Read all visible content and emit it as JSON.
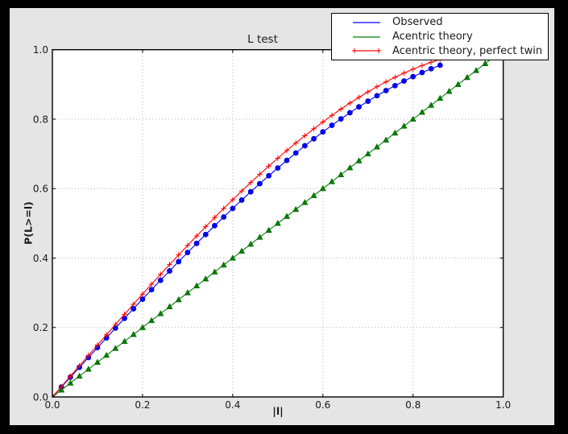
{
  "window": {
    "outer_background": "#000000",
    "figure_background": "#e5e5e5",
    "plot_background": "#ffffff",
    "frame_color": "#000000",
    "grid_color": "#b0b0b0",
    "text_color": "#1a1a1a"
  },
  "chart_data": {
    "type": "line",
    "title": "L test",
    "xlabel": "|l|",
    "ylabel": "P(L>=l)",
    "xlim": [
      0,
      1
    ],
    "ylim": [
      0,
      1
    ],
    "x_tick_labels": [
      "0.0",
      "0.2",
      "0.4",
      "0.6",
      "0.8",
      "1.0"
    ],
    "y_tick_labels": [
      "0.0",
      "0.2",
      "0.4",
      "0.6",
      "0.8",
      "1.0"
    ],
    "tick_values": [
      0,
      0.2,
      0.4,
      0.6,
      0.8,
      1.0
    ],
    "grid": "dotted",
    "legend_position": "upper-right-overlapping-axes",
    "series": [
      {
        "name": "Observed",
        "color": "#0000ff",
        "marker": "circle",
        "legend_marker": "none",
        "x": [
          0,
          0.02,
          0.04,
          0.06,
          0.08,
          0.1,
          0.12,
          0.14,
          0.16,
          0.18,
          0.2,
          0.22,
          0.24,
          0.26,
          0.28,
          0.3,
          0.32,
          0.34,
          0.36,
          0.38,
          0.4,
          0.42,
          0.44,
          0.46,
          0.48,
          0.5,
          0.52,
          0.54,
          0.56,
          0.58,
          0.6,
          0.62,
          0.64,
          0.66,
          0.68,
          0.7,
          0.72,
          0.74,
          0.76,
          0.78,
          0.8,
          0.82,
          0.84,
          0.86
        ],
        "y": [
          0,
          0.0285,
          0.057,
          0.0854,
          0.1137,
          0.1421,
          0.1702,
          0.1983,
          0.2263,
          0.254,
          0.2816,
          0.309,
          0.3361,
          0.363,
          0.3897,
          0.416,
          0.4421,
          0.4678,
          0.4932,
          0.5182,
          0.5428,
          0.567,
          0.5908,
          0.6141,
          0.637,
          0.6594,
          0.6812,
          0.7026,
          0.7234,
          0.7435,
          0.7632,
          0.7822,
          0.8006,
          0.8184,
          0.8354,
          0.8517,
          0.8674,
          0.8823,
          0.8964,
          0.9098,
          0.9224,
          0.9342,
          0.9451,
          0.9552
        ]
      },
      {
        "name": "Acentric theory",
        "color": "#008000",
        "marker": "triangle-up",
        "legend_marker": "none",
        "x": [
          0,
          0.02,
          0.04,
          0.06,
          0.08,
          0.1,
          0.12,
          0.14,
          0.16,
          0.18,
          0.2,
          0.22,
          0.24,
          0.26,
          0.28,
          0.3,
          0.32,
          0.34,
          0.36,
          0.38,
          0.4,
          0.42,
          0.44,
          0.46,
          0.48,
          0.5,
          0.52,
          0.54,
          0.56,
          0.58,
          0.6,
          0.62,
          0.64,
          0.66,
          0.68,
          0.7,
          0.72,
          0.74,
          0.76,
          0.78,
          0.8,
          0.82,
          0.84,
          0.86,
          0.88,
          0.9,
          0.92,
          0.94,
          0.96,
          0.98,
          1
        ],
        "y": [
          0,
          0.02,
          0.04,
          0.06,
          0.08,
          0.1,
          0.12,
          0.14,
          0.16,
          0.18,
          0.2,
          0.22,
          0.24,
          0.26,
          0.28,
          0.3,
          0.32,
          0.34,
          0.36,
          0.38,
          0.4,
          0.42,
          0.44,
          0.46,
          0.48,
          0.5,
          0.52,
          0.54,
          0.56,
          0.58,
          0.6,
          0.62,
          0.64,
          0.66,
          0.68,
          0.7,
          0.72,
          0.74,
          0.76,
          0.78,
          0.8,
          0.82,
          0.84,
          0.86,
          0.88,
          0.9,
          0.92,
          0.94,
          0.96,
          0.98,
          1
        ]
      },
      {
        "name": "Acentric theory, perfect twin",
        "color": "#ff0000",
        "marker": "plus",
        "legend_marker": "plus",
        "x": [
          0,
          0.02,
          0.04,
          0.06,
          0.08,
          0.1,
          0.12,
          0.14,
          0.16,
          0.18,
          0.2,
          0.22,
          0.24,
          0.26,
          0.28,
          0.3,
          0.32,
          0.34,
          0.36,
          0.38,
          0.4,
          0.42,
          0.44,
          0.46,
          0.48,
          0.5,
          0.52,
          0.54,
          0.56,
          0.58,
          0.6,
          0.62,
          0.64,
          0.66,
          0.68,
          0.7,
          0.72,
          0.74,
          0.76,
          0.78,
          0.8,
          0.82,
          0.84,
          0.86,
          0.88,
          0.9,
          0.92,
          0.94,
          0.96,
          0.98,
          1
        ],
        "y": [
          0,
          0.03,
          0.06,
          0.0899,
          0.1197,
          0.1495,
          0.1791,
          0.2086,
          0.238,
          0.2671,
          0.296,
          0.3247,
          0.3531,
          0.3812,
          0.409,
          0.4365,
          0.4636,
          0.4903,
          0.5167,
          0.5426,
          0.568,
          0.593,
          0.6174,
          0.6413,
          0.6647,
          0.6875,
          0.7097,
          0.7313,
          0.7522,
          0.7724,
          0.792,
          0.8108,
          0.8289,
          0.8463,
          0.8628,
          0.8785,
          0.8934,
          0.9074,
          0.9205,
          0.9327,
          0.944,
          0.9543,
          0.9636,
          0.972,
          0.9793,
          0.9855,
          0.9907,
          0.9947,
          0.9976,
          0.9994,
          1
        ]
      }
    ]
  }
}
